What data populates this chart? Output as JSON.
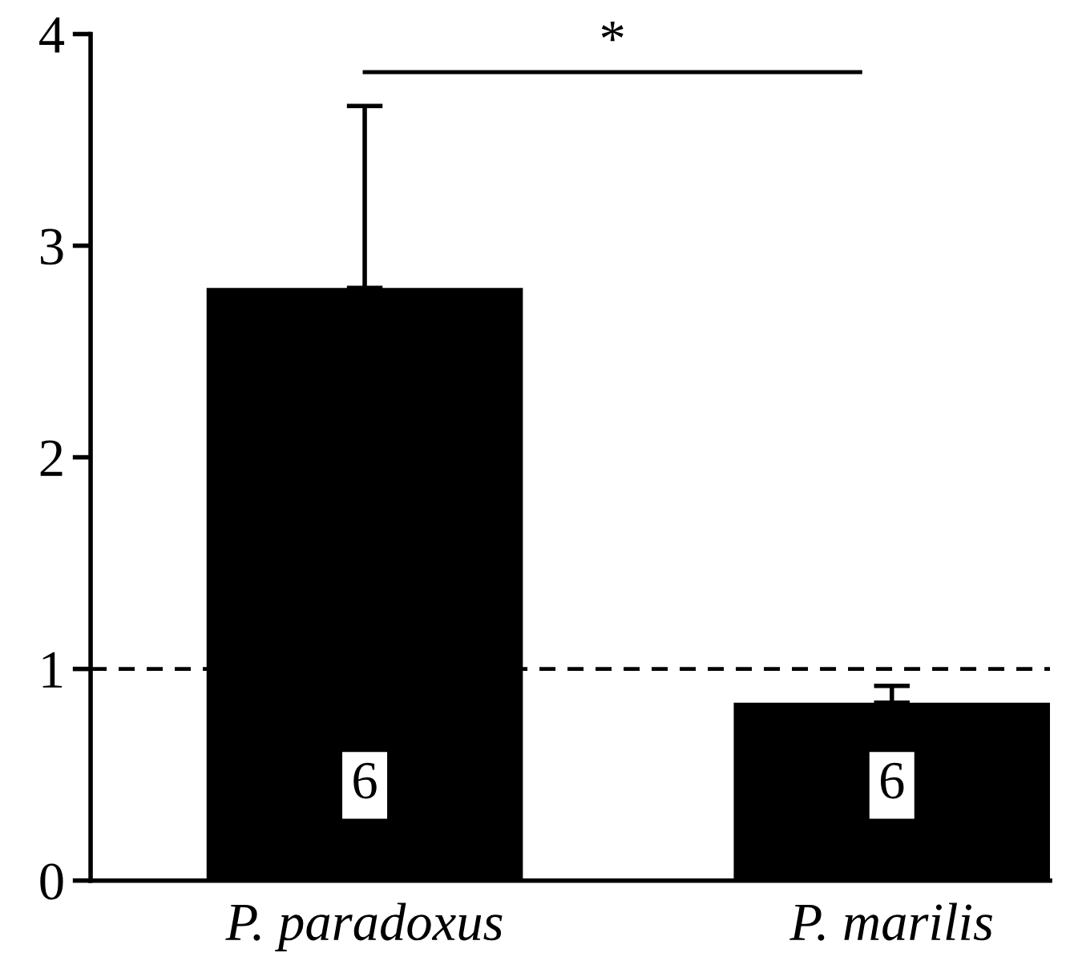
{
  "chart_data": {
    "type": "bar",
    "categories": [
      "P. paradoxus",
      "P. marilis"
    ],
    "values": [
      2.8,
      0.84
    ],
    "color": "#000000",
    "errors": [
      [
        2.8,
        3.66
      ],
      [
        0.84,
        0.92
      ]
    ],
    "ylim": [
      0,
      4
    ],
    "yticks": [
      0,
      1,
      2,
      3,
      4
    ],
    "grid": false,
    "ref_lines": [
      {
        "axis": "y",
        "value": 1,
        "color": "#000000",
        "line_style": "dashed"
      }
    ],
    "annotations": [
      "*",
      {
        "text": "6",
        "x": "P. paradoxus",
        "y": 0.45
      },
      {
        "text": "6",
        "x": "P. marilis",
        "y": 0.45
      }
    ]
  }
}
